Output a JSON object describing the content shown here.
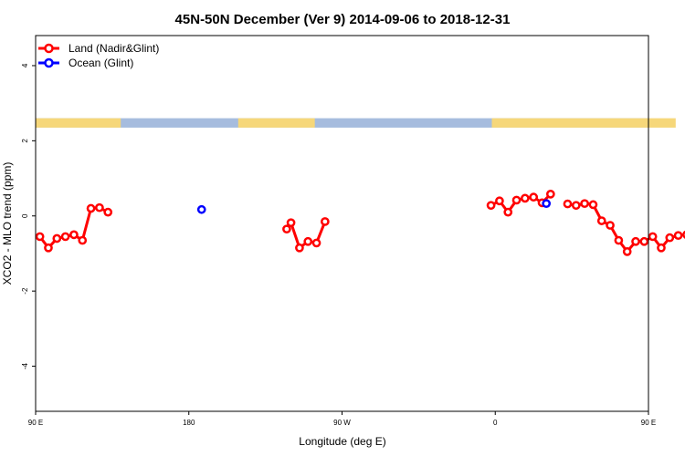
{
  "chart_data": {
    "type": "line",
    "title": "45N-50N December (Ver 9)   2014-09-06 to 2018-12-31",
    "xlabel": "Longitude (deg E)",
    "ylabel": "XCO2 - MLO trend (ppm)",
    "xlim": [
      90,
      450
    ],
    "ylim": [
      -5.2,
      4.8
    ],
    "x_ticks": [
      {
        "value": 90,
        "label": "90 E"
      },
      {
        "value": 180,
        "label": "180"
      },
      {
        "value": 270,
        "label": "90 W"
      },
      {
        "value": 360,
        "label": "0"
      },
      {
        "value": 450,
        "label": "90 E"
      },
      {
        "value": 540,
        "label": "180"
      }
    ],
    "y_ticks": [
      {
        "value": -4,
        "label": "-4"
      },
      {
        "value": -2,
        "label": "-2"
      },
      {
        "value": 0,
        "label": "0"
      },
      {
        "value": 2,
        "label": "2"
      },
      {
        "value": 4,
        "label": "4"
      }
    ],
    "legend_position": "top-left",
    "land_band": {
      "ymin": 2.35,
      "ymax": 2.6,
      "land_color": "#f6d77a",
      "ocean_color": "#a6bcde"
    },
    "series": [
      {
        "name": "Land (Nadir&Glint)",
        "color": "#ff0000",
        "segments": [
          [
            [
              92.5,
              -0.55
            ],
            [
              97.5,
              -0.85
            ],
            [
              102.5,
              -0.6
            ],
            [
              107.5,
              -0.55
            ],
            [
              112.5,
              -0.5
            ],
            [
              117.5,
              -0.65
            ],
            [
              122.5,
              0.2
            ],
            [
              127.5,
              0.22
            ],
            [
              132.5,
              0.1
            ]
          ],
          [
            [
              237.5,
              -0.35
            ],
            [
              240,
              -0.18
            ],
            [
              245,
              -0.85
            ],
            [
              250,
              -0.68
            ],
            [
              255,
              -0.72
            ],
            [
              260,
              -0.15
            ]
          ],
          [
            [
              357.5,
              0.28
            ],
            [
              362.5,
              0.4
            ],
            [
              367.5,
              0.1
            ],
            [
              372.5,
              0.42
            ],
            [
              377.5,
              0.47
            ],
            [
              382.5,
              0.5
            ],
            [
              387.5,
              0.35
            ],
            [
              392.5,
              0.58
            ]
          ],
          [
            [
              402.5,
              0.32
            ],
            [
              407.5,
              0.28
            ],
            [
              412.5,
              0.33
            ],
            [
              417.5,
              0.3
            ],
            [
              422.5,
              -0.13
            ],
            [
              427.5,
              -0.25
            ],
            [
              432.5,
              -0.65
            ],
            [
              437.5,
              -0.95
            ],
            [
              442.5,
              -0.68
            ],
            [
              447.5,
              -0.68
            ],
            [
              452.5,
              -0.55
            ],
            [
              457.5,
              -0.85
            ],
            [
              462.5,
              -0.58
            ],
            [
              467.5,
              -0.52
            ],
            [
              472.5,
              -0.5
            ],
            [
              477.5,
              -0.65
            ],
            [
              482.5,
              0.22
            ],
            [
              487.5,
              0.24
            ],
            [
              492.5,
              0.1
            ]
          ]
        ]
      },
      {
        "name": "Ocean (Glint)",
        "color": "#0000ff",
        "segments": [
          [
            [
              187.5,
              0.17
            ]
          ],
          [
            [
              390,
              0.33
            ]
          ]
        ]
      }
    ]
  }
}
